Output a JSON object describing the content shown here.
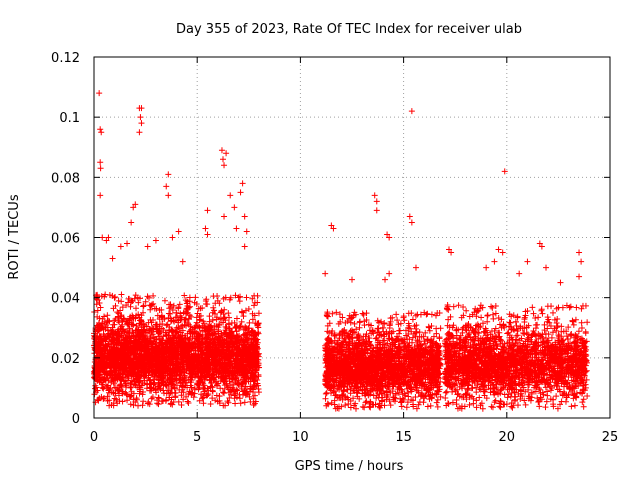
{
  "chart_data": {
    "type": "scatter",
    "title": "Day 355 of 2023, Rate Of TEC Index for receiver ulab",
    "xlabel": "GPS time / hours",
    "ylabel": "ROTI / TECUs",
    "xlim": [
      0,
      25
    ],
    "ylim": [
      0,
      0.12
    ],
    "xticks": [
      0,
      5,
      10,
      15,
      20,
      25
    ],
    "xtick_labels": [
      "0",
      "5",
      "10",
      "15",
      "20",
      "25"
    ],
    "yticks": [
      0,
      0.02,
      0.04,
      0.06,
      0.08,
      0.1,
      0.12
    ],
    "ytick_labels": [
      "0",
      "0.02",
      "0.04",
      "0.06",
      "0.08",
      "0.1",
      "0.12"
    ],
    "grid": true,
    "legend": false,
    "marker": "+",
    "color": "#ff0000",
    "data_segments": [
      {
        "x_start": 0.0,
        "x_end": 8.0,
        "typical_min": 0.004,
        "typical_max": 0.035,
        "median": 0.017
      },
      {
        "x_start": 11.2,
        "x_end": 16.8,
        "typical_min": 0.003,
        "typical_max": 0.03,
        "median": 0.015
      },
      {
        "x_start": 17.0,
        "x_end": 23.9,
        "typical_min": 0.003,
        "typical_max": 0.032,
        "median": 0.015
      }
    ],
    "points": [
      {
        "x": 0.25,
        "y": 0.108
      },
      {
        "x": 0.3,
        "y": 0.096
      },
      {
        "x": 0.35,
        "y": 0.095
      },
      {
        "x": 0.3,
        "y": 0.085
      },
      {
        "x": 0.32,
        "y": 0.083
      },
      {
        "x": 0.3,
        "y": 0.074
      },
      {
        "x": 0.4,
        "y": 0.06
      },
      {
        "x": 0.6,
        "y": 0.059
      },
      {
        "x": 0.7,
        "y": 0.06
      },
      {
        "x": 0.9,
        "y": 0.053
      },
      {
        "x": 1.3,
        "y": 0.057
      },
      {
        "x": 1.6,
        "y": 0.058
      },
      {
        "x": 1.8,
        "y": 0.065
      },
      {
        "x": 1.9,
        "y": 0.07
      },
      {
        "x": 2.0,
        "y": 0.071
      },
      {
        "x": 2.2,
        "y": 0.103
      },
      {
        "x": 2.25,
        "y": 0.1
      },
      {
        "x": 2.3,
        "y": 0.098
      },
      {
        "x": 2.2,
        "y": 0.095
      },
      {
        "x": 2.3,
        "y": 0.103
      },
      {
        "x": 2.6,
        "y": 0.057
      },
      {
        "x": 3.0,
        "y": 0.059
      },
      {
        "x": 3.5,
        "y": 0.077
      },
      {
        "x": 3.6,
        "y": 0.081
      },
      {
        "x": 3.6,
        "y": 0.074
      },
      {
        "x": 3.8,
        "y": 0.06
      },
      {
        "x": 4.1,
        "y": 0.062
      },
      {
        "x": 4.3,
        "y": 0.052
      },
      {
        "x": 5.4,
        "y": 0.063
      },
      {
        "x": 5.5,
        "y": 0.069
      },
      {
        "x": 5.5,
        "y": 0.061
      },
      {
        "x": 6.2,
        "y": 0.089
      },
      {
        "x": 6.25,
        "y": 0.086
      },
      {
        "x": 6.3,
        "y": 0.084
      },
      {
        "x": 6.4,
        "y": 0.088
      },
      {
        "x": 6.3,
        "y": 0.067
      },
      {
        "x": 6.6,
        "y": 0.074
      },
      {
        "x": 6.8,
        "y": 0.07
      },
      {
        "x": 6.9,
        "y": 0.063
      },
      {
        "x": 7.1,
        "y": 0.075
      },
      {
        "x": 7.2,
        "y": 0.078
      },
      {
        "x": 7.3,
        "y": 0.067
      },
      {
        "x": 7.4,
        "y": 0.062
      },
      {
        "x": 7.3,
        "y": 0.057
      },
      {
        "x": 11.2,
        "y": 0.048
      },
      {
        "x": 11.5,
        "y": 0.064
      },
      {
        "x": 11.6,
        "y": 0.063
      },
      {
        "x": 12.5,
        "y": 0.046
      },
      {
        "x": 13.6,
        "y": 0.074
      },
      {
        "x": 13.7,
        "y": 0.072
      },
      {
        "x": 13.7,
        "y": 0.069
      },
      {
        "x": 14.2,
        "y": 0.061
      },
      {
        "x": 14.3,
        "y": 0.06
      },
      {
        "x": 14.1,
        "y": 0.046
      },
      {
        "x": 14.3,
        "y": 0.048
      },
      {
        "x": 15.3,
        "y": 0.067
      },
      {
        "x": 15.4,
        "y": 0.065
      },
      {
        "x": 15.4,
        "y": 0.102
      },
      {
        "x": 15.6,
        "y": 0.05
      },
      {
        "x": 17.3,
        "y": 0.055
      },
      {
        "x": 17.2,
        "y": 0.056
      },
      {
        "x": 19.0,
        "y": 0.05
      },
      {
        "x": 19.4,
        "y": 0.052
      },
      {
        "x": 19.6,
        "y": 0.056
      },
      {
        "x": 19.9,
        "y": 0.082
      },
      {
        "x": 19.8,
        "y": 0.055
      },
      {
        "x": 20.6,
        "y": 0.048
      },
      {
        "x": 21.0,
        "y": 0.052
      },
      {
        "x": 21.6,
        "y": 0.058
      },
      {
        "x": 21.7,
        "y": 0.057
      },
      {
        "x": 21.9,
        "y": 0.05
      },
      {
        "x": 22.6,
        "y": 0.045
      },
      {
        "x": 23.5,
        "y": 0.055
      },
      {
        "x": 23.6,
        "y": 0.052
      },
      {
        "x": 23.5,
        "y": 0.047
      }
    ]
  }
}
